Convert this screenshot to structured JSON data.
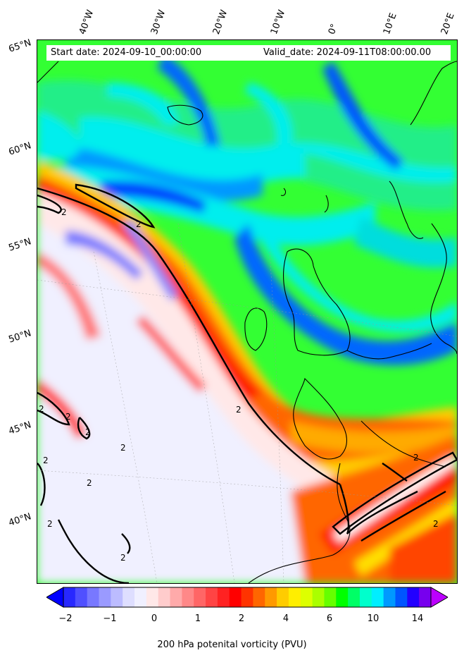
{
  "header": {
    "start_date": "Start date: 2024-09-10_00:00:00",
    "valid_date": "Valid_date: 2024-09-11T08:00:00.00"
  },
  "lon_labels": [
    "40°W",
    "30°W",
    "20°W",
    "10°W",
    "0°",
    "10°E",
    "20°E"
  ],
  "lat_labels": [
    "65°N",
    "60°N",
    "55°N",
    "50°N",
    "45°N",
    "40°N"
  ],
  "contour_label": "2",
  "colorbar": {
    "ticks": [
      "−2",
      "−1",
      "0",
      "1",
      "2",
      "4",
      "6",
      "10",
      "14"
    ],
    "label": "200 hPa potenital vorticity (PVU)",
    "colors": [
      "#0000ff",
      "#2828ff",
      "#5050ff",
      "#7878ff",
      "#9a9aff",
      "#bcbcff",
      "#dedeff",
      "#f0f0ff",
      "#ffe8e8",
      "#ffcccc",
      "#ffaaaa",
      "#ff8888",
      "#ff6666",
      "#ff4444",
      "#ff2222",
      "#ff0000",
      "#ff3300",
      "#ff6600",
      "#ff9900",
      "#ffcc00",
      "#ffee00",
      "#ddff00",
      "#aaff00",
      "#66ff00",
      "#00ff00",
      "#00ff66",
      "#00ffcc",
      "#00eeff",
      "#0099ff",
      "#0055ff",
      "#2200ff",
      "#7700ee",
      "#bb00ff"
    ]
  }
}
